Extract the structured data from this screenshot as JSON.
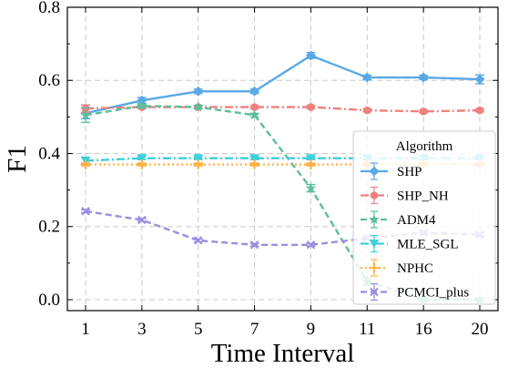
{
  "chart_data": {
    "type": "line",
    "xlabel": "Time Interval",
    "ylabel": "F1",
    "x": [
      1,
      3,
      5,
      7,
      9,
      11,
      16,
      20
    ],
    "yticks": [
      "0.0",
      "0.2",
      "0.4",
      "0.6",
      "0.8"
    ],
    "ylim": [
      -0.03,
      0.8
    ],
    "grid": true,
    "legend": {
      "title": "Algorithm",
      "placement": "center-right"
    },
    "series": [
      {
        "name": "SHP",
        "color": "#5aa9e6",
        "dash": "solid",
        "marker": "diamond",
        "values": [
          0.51,
          0.545,
          0.57,
          0.57,
          0.668,
          0.608,
          0.608,
          0.603
        ],
        "errors": [
          0.015,
          0.008,
          0.006,
          0.006,
          0.008,
          0.006,
          0.006,
          0.012
        ]
      },
      {
        "name": "SHP_NH",
        "color": "#f08080",
        "dash": "dashdot",
        "marker": "circle",
        "values": [
          0.523,
          0.527,
          0.527,
          0.527,
          0.527,
          0.518,
          0.515,
          0.518
        ],
        "errors": [
          0.01,
          0.004,
          0.004,
          0.004,
          0.004,
          0.004,
          0.004,
          0.004
        ]
      },
      {
        "name": "ADM4",
        "color": "#5cbf99",
        "dash": "dash",
        "marker": "star",
        "values": [
          0.505,
          0.53,
          0.527,
          0.505,
          0.305,
          0.05,
          0.0,
          0.0
        ],
        "errors": [
          0.02,
          0.005,
          0.005,
          0.005,
          0.01,
          0.01,
          0.004,
          0.004
        ]
      },
      {
        "name": "MLE_SGL",
        "color": "#3ccfdc",
        "dash": "dashdot",
        "marker": "tri",
        "values": [
          0.38,
          0.387,
          0.387,
          0.387,
          0.387,
          0.387,
          0.387,
          0.387
        ],
        "errors": [
          0.01,
          0.004,
          0.004,
          0.004,
          0.004,
          0.004,
          0.004,
          0.004
        ]
      },
      {
        "name": "NPHC",
        "color": "#ffb347",
        "dash": "dotted",
        "marker": "plus",
        "values": [
          0.37,
          0.37,
          0.37,
          0.37,
          0.37,
          0.37,
          0.37,
          0.37
        ],
        "errors": [
          0.004,
          0.004,
          0.004,
          0.004,
          0.004,
          0.004,
          0.004,
          0.004
        ]
      },
      {
        "name": "PCMCI_plus",
        "color": "#9b8ee0",
        "dash": "dash",
        "marker": "x",
        "values": [
          0.242,
          0.218,
          0.162,
          0.15,
          0.15,
          0.168,
          0.183,
          0.178
        ],
        "errors": [
          0.004,
          0.004,
          0.004,
          0.004,
          0.004,
          0.004,
          0.004,
          0.004
        ]
      }
    ]
  }
}
